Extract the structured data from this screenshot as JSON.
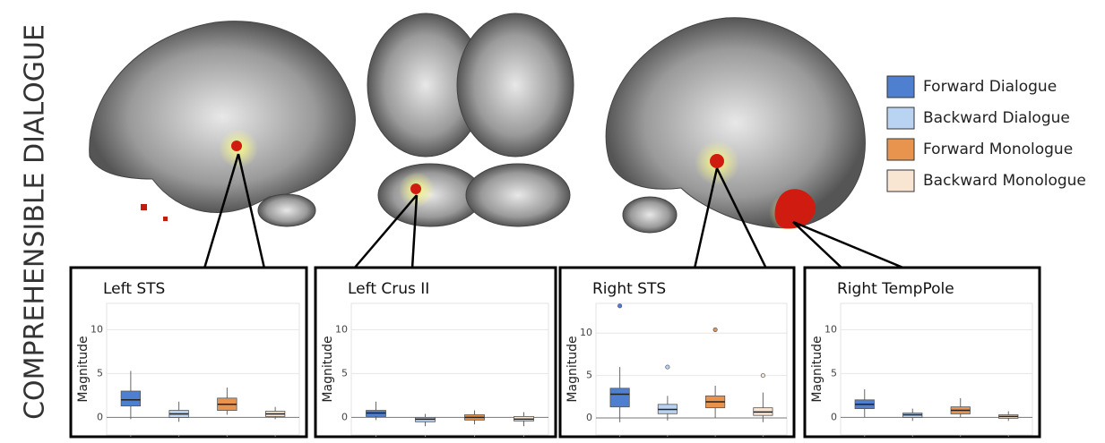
{
  "side_label": "COMPREHENSIBLE DIALOGUE",
  "legend": [
    {
      "name": "Forward Dialogue",
      "color": "#4f7fcf"
    },
    {
      "name": "Backward Dialogue",
      "color": "#b9d3f3"
    },
    {
      "name": "Forward Monologue",
      "color": "#e8944f"
    },
    {
      "name": "Backward Monologue",
      "color": "#f8e6d3"
    }
  ],
  "chart_data": [
    {
      "type": "box",
      "title": "Left STS",
      "y_label": "Magnitude",
      "ylim": [
        -2,
        13
      ],
      "yticks": [
        0,
        5,
        10
      ],
      "grid": true,
      "boxes": [
        {
          "low": -0.2,
          "q1": 1.3,
          "median": 2.0,
          "q3": 3.0,
          "high": 5.3,
          "outliers": []
        },
        {
          "low": -0.5,
          "q1": 0.0,
          "median": 0.4,
          "q3": 0.8,
          "high": 1.8,
          "outliers": []
        },
        {
          "low": 0.3,
          "q1": 0.8,
          "median": 1.5,
          "q3": 2.2,
          "high": 3.4,
          "outliers": []
        },
        {
          "low": -0.2,
          "q1": 0.1,
          "median": 0.4,
          "q3": 0.7,
          "high": 1.2,
          "outliers": []
        }
      ]
    },
    {
      "type": "box",
      "title": "Left Crus II",
      "y_label": "Magnitude",
      "ylim": [
        -2,
        13
      ],
      "yticks": [
        0,
        5,
        10
      ],
      "grid": true,
      "boxes": [
        {
          "low": -0.3,
          "q1": 0.1,
          "median": 0.5,
          "q3": 0.8,
          "high": 1.8,
          "outliers": []
        },
        {
          "low": -1.0,
          "q1": -0.5,
          "median": -0.2,
          "q3": 0.0,
          "high": 0.4,
          "outliers": []
        },
        {
          "low": -0.8,
          "q1": -0.3,
          "median": 0.0,
          "q3": 0.3,
          "high": 0.8,
          "outliers": []
        },
        {
          "low": -1.0,
          "q1": -0.4,
          "median": -0.2,
          "q3": 0.1,
          "high": 0.6,
          "outliers": []
        }
      ]
    },
    {
      "type": "box",
      "title": "Right STS",
      "y_label": "Magnitude",
      "ylim": [
        -2,
        13.5
      ],
      "yticks": [
        0,
        5,
        10
      ],
      "grid": true,
      "boxes": [
        {
          "low": -0.5,
          "q1": 1.3,
          "median": 2.8,
          "q3": 3.5,
          "high": 6.0,
          "outliers": [
            13.2
          ]
        },
        {
          "low": -0.3,
          "q1": 0.5,
          "median": 1.0,
          "q3": 1.6,
          "high": 2.6,
          "outliers": [
            6.0
          ]
        },
        {
          "low": 0.0,
          "q1": 1.2,
          "median": 1.9,
          "q3": 2.6,
          "high": 3.8,
          "outliers": [
            10.4
          ]
        },
        {
          "low": -0.5,
          "q1": 0.3,
          "median": 0.7,
          "q3": 1.2,
          "high": 3.0,
          "outliers": [
            5.0
          ]
        }
      ]
    },
    {
      "type": "box",
      "title": "Right TempPole",
      "y_label": "Magnitude",
      "ylim": [
        -2,
        13
      ],
      "yticks": [
        0,
        5,
        10
      ],
      "grid": true,
      "boxes": [
        {
          "low": 0.0,
          "q1": 1.0,
          "median": 1.5,
          "q3": 2.0,
          "high": 3.2,
          "outliers": []
        },
        {
          "low": -0.4,
          "q1": 0.0,
          "median": 0.3,
          "q3": 0.5,
          "high": 1.0,
          "outliers": []
        },
        {
          "low": 0.0,
          "q1": 0.4,
          "median": 0.8,
          "q3": 1.2,
          "high": 2.2,
          "outliers": []
        },
        {
          "low": -0.4,
          "q1": -0.1,
          "median": 0.1,
          "q3": 0.3,
          "high": 0.7,
          "outliers": []
        }
      ]
    }
  ]
}
